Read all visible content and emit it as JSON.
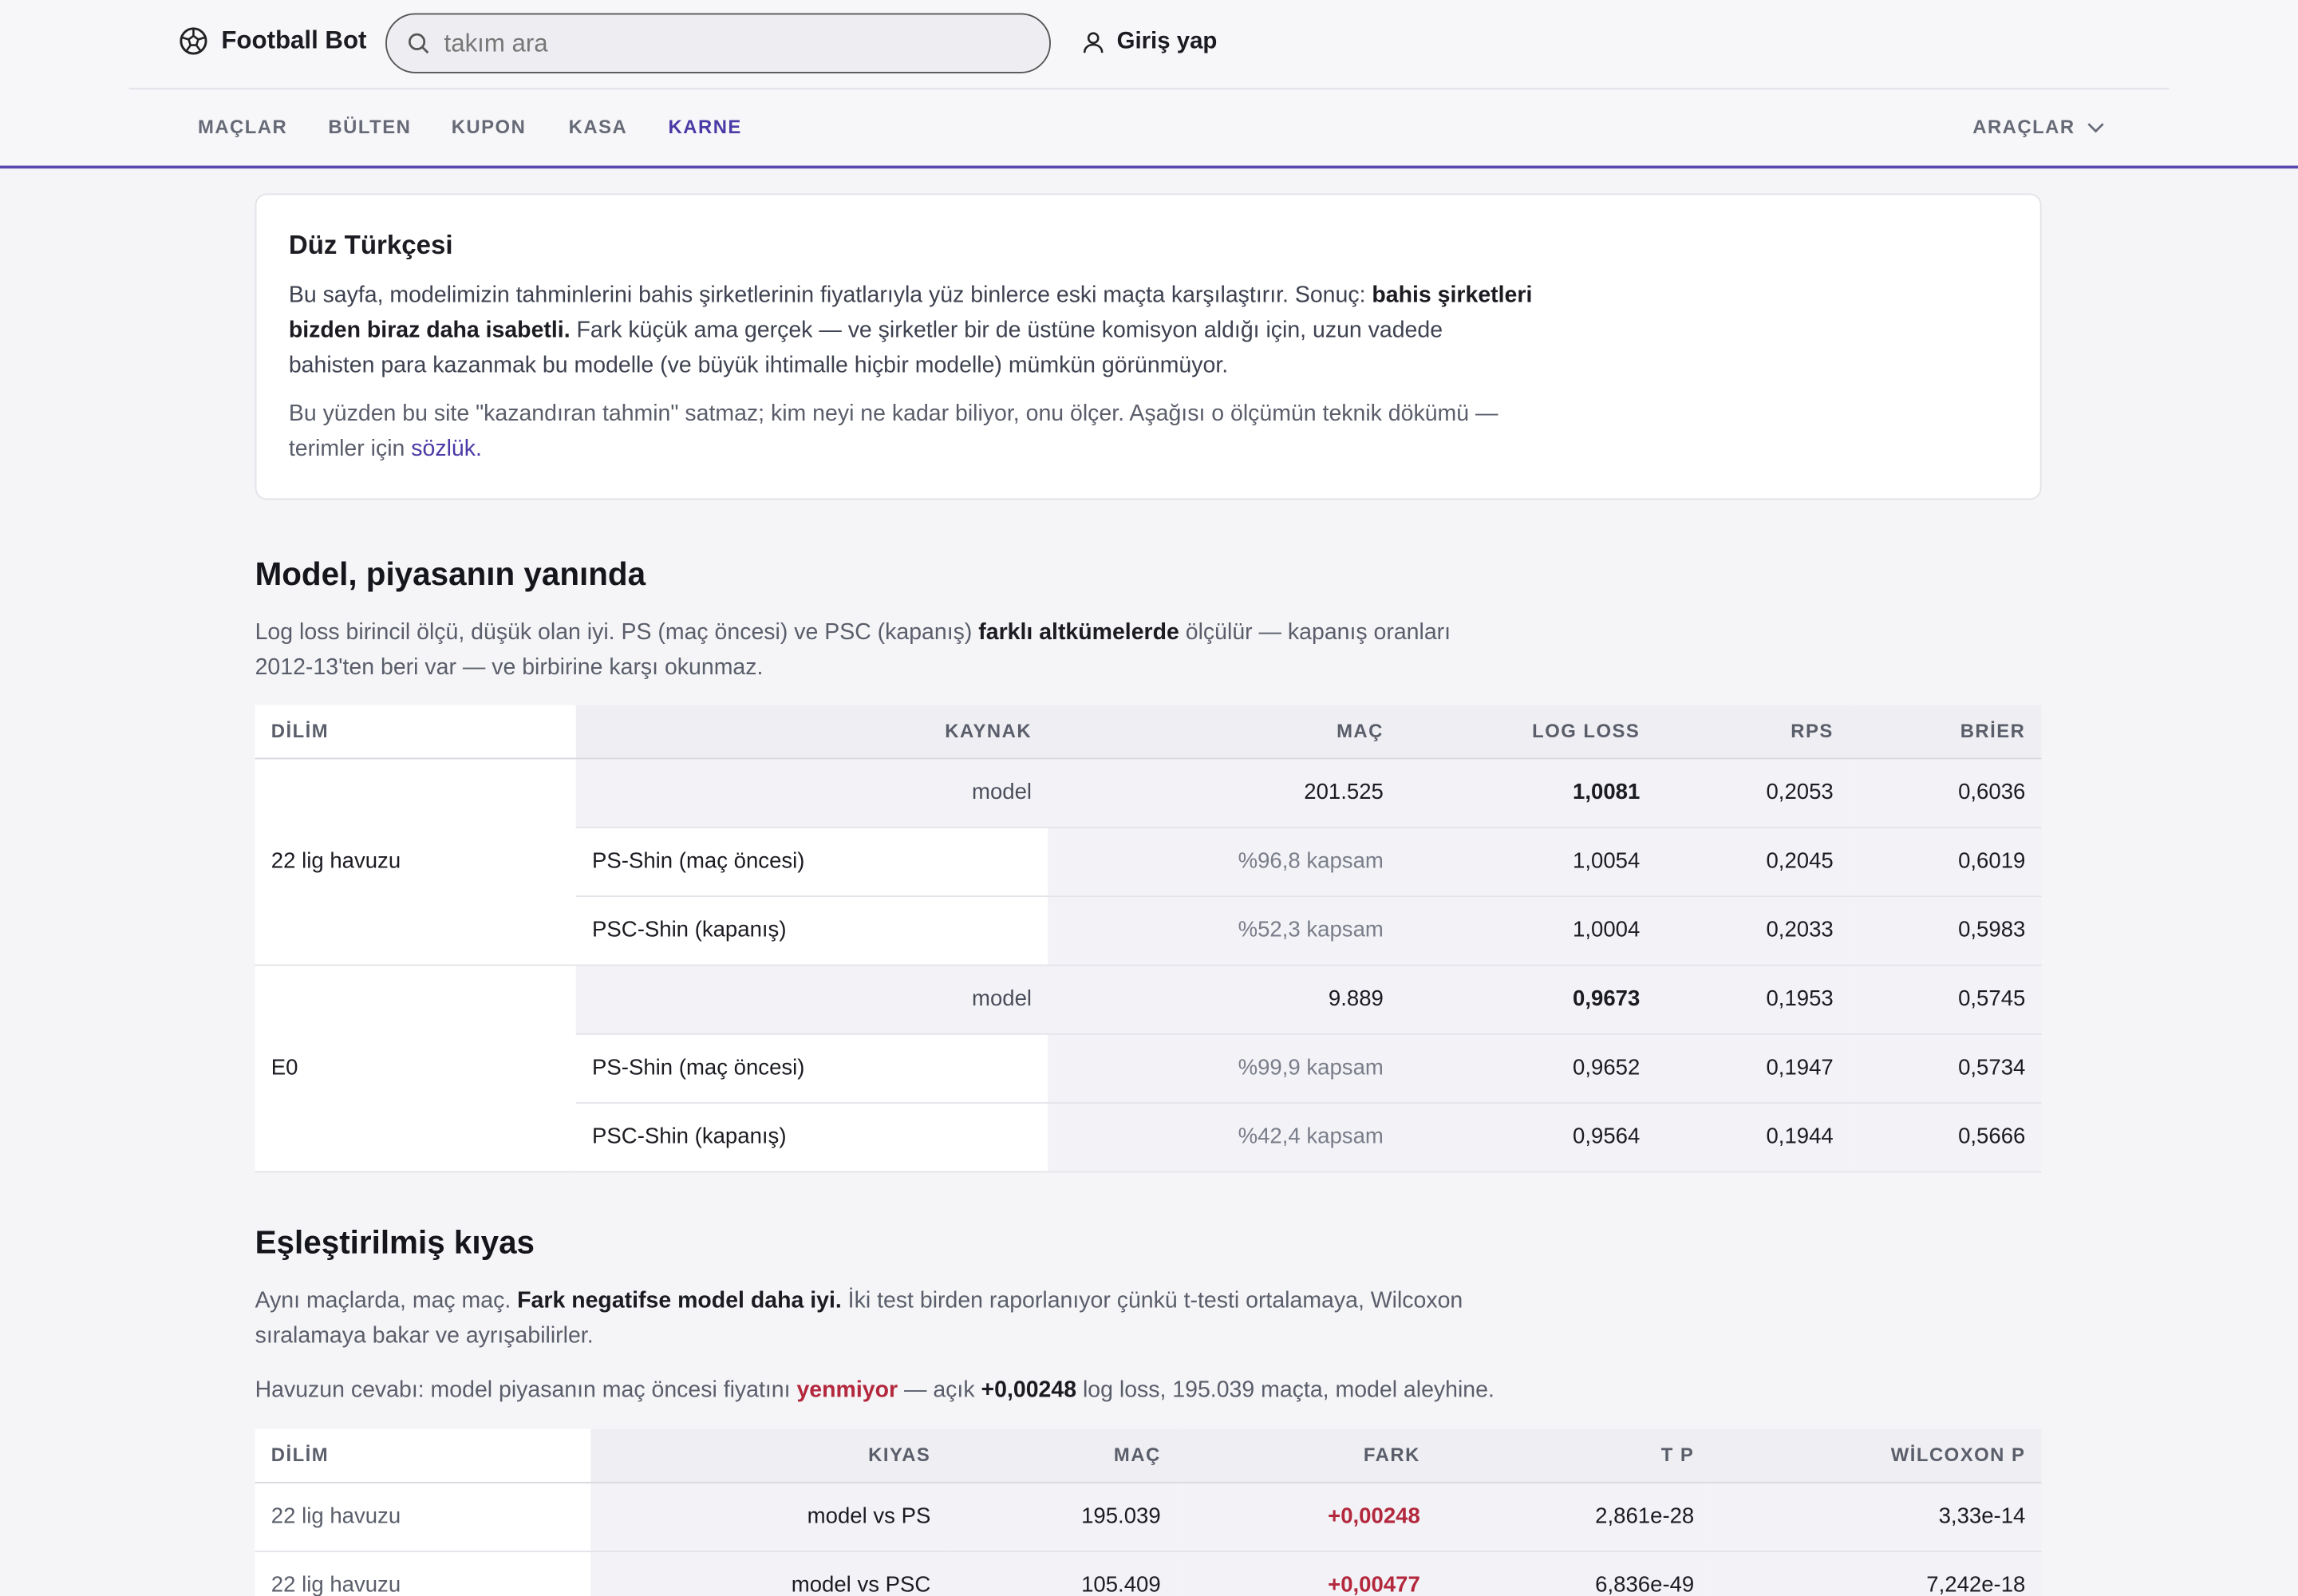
{
  "header": {
    "brand": "Football Bot",
    "search_placeholder": "takım ara",
    "login": "Giriş yap"
  },
  "nav": {
    "items": [
      "MAÇLAR",
      "BÜLTEN",
      "KUPON",
      "KASA",
      "KARNE"
    ],
    "active": 4,
    "tools": "ARAÇLAR"
  },
  "plain": {
    "title": "Düz Türkçesi",
    "p1": [
      "Bu sayfa, modelimizin tahminlerini bahis şirketlerinin fiyatlarıyla yüz binlerce eski maçta karşılaştırır. Sonuç: ",
      "bahis şirketleri bizden biraz daha isabetli.",
      " Fark küçük ama gerçek — ve şirketler bir de üstüne komisyon aldığı için, uzun vadede bahisten para kazanmak bu modelle (ve büyük ihtimalle hiçbir modelle) mümkün görünmüyor."
    ],
    "p2": {
      "text": "Bu yüzden bu site \"kazandıran tahmin\" satmaz; kim neyi ne kadar biliyor, onu ölçer. Aşağısı o ölçümün teknik dökümü — terimler için ",
      "link": "sözlük."
    }
  },
  "market": {
    "title": "Model, piyasanın yanında",
    "desc": [
      "Log loss birincil ölçü, düşük olan iyi. PS (maç öncesi) ve PSC (kapanış) ",
      "farklı altkümelerde",
      " ölçülür — kapanış oranları 2012-13'ten beri var — ve birbirine karşı okunmaz."
    ],
    "columns": [
      "DİLİM",
      "KAYNAK",
      "MAÇ",
      "LOG LOSS",
      "RPS",
      "BRİER"
    ],
    "groups": [
      {
        "slice": "22 lig havuzu",
        "rows": [
          [
            "model",
            "201.525",
            "1,0081",
            "0,2053",
            "0,6036"
          ],
          [
            "PS-Shin (maç öncesi)",
            "%96,8 kapsam",
            "1,0054",
            "0,2045",
            "0,6019"
          ],
          [
            "PSC-Shin (kapanış)",
            "%52,3 kapsam",
            "1,0004",
            "0,2033",
            "0,5983"
          ]
        ]
      },
      {
        "slice": "E0",
        "rows": [
          [
            "model",
            "9.889",
            "0,9673",
            "0,1953",
            "0,5745"
          ],
          [
            "PS-Shin (maç öncesi)",
            "%99,9 kapsam",
            "0,9652",
            "0,1947",
            "0,5734"
          ],
          [
            "PSC-Shin (kapanış)",
            "%42,4 kapsam",
            "0,9564",
            "0,1944",
            "0,5666"
          ]
        ]
      }
    ]
  },
  "paired": {
    "title": "Eşleştirilmiş kıyas",
    "desc": [
      "Aynı maçlarda, maç maç. ",
      "Fark negatifse model daha iyi.",
      " İki test birden raporlanıyor çünkü t-testi ortalamaya, Wilcoxon sıralamaya bakar ve ayrışabilirler."
    ],
    "answer": {
      "before": "Havuzun cevabı: model piyasanın maç öncesi fiyatını ",
      "verdict": "yenmiyor",
      "mid": " — açık ",
      "value": "+0,00248",
      "after": " log loss, 195.039 maçta, model aleyhine."
    },
    "columns": [
      "DİLİM",
      "KIYAS",
      "MAÇ",
      "FARK",
      "T P",
      "WİLCOXON P"
    ],
    "rows": [
      [
        "22 lig havuzu",
        "model vs PS",
        "195.039",
        "+0,00248",
        "2,861e-28",
        "3,33e-14"
      ],
      [
        "22 lig havuzu",
        "model vs PSC",
        "105.409",
        "+0,00477",
        "6,836e-49",
        "7,242e-18"
      ]
    ]
  }
}
